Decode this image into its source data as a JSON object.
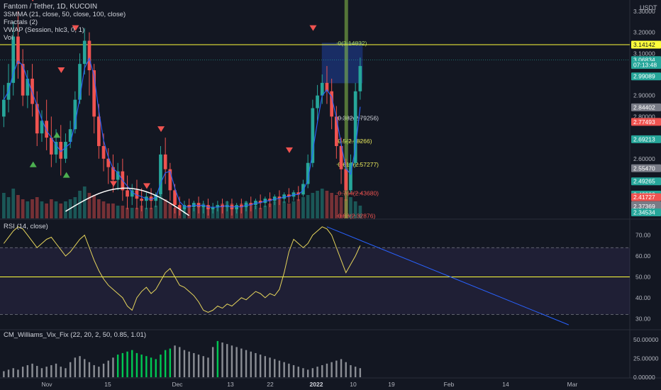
{
  "header": {
    "symbol_line": "Fantom / Tether, 1D, KUCOIN",
    "indicators": [
      "3SMMA (21, close, 50, close, 100, close)",
      "Fractals (2)",
      "VWAP (Session, hlc3, 0, 1)",
      "Vol"
    ],
    "currency": "USDT"
  },
  "rsi_legend": "RSI (14, close)",
  "vix_legend": "CM_Williams_Vix_Fix (22, 20, 2, 50, 0.85, 1.01)",
  "colors": {
    "background": "#131722",
    "up": "#26a69a",
    "down": "#ef5350",
    "fib_green": "#9ccc65",
    "fib_yellow": "#e6e65c",
    "fib_red": "#ef5350",
    "level_yellow": "#ffff3b",
    "rsi_band": "#7e57c2",
    "trendline": "#2962ff",
    "vix_green": "#00c853",
    "vix_gray": "#8a8d94"
  },
  "chart_data": [
    {
      "type": "candlestick",
      "title": "Fantom / Tether, 1D, KUCOIN",
      "ylim": [
        2.33,
        3.34
      ],
      "price_ticks": [
        "3.30000",
        "3.20000",
        "3.10000",
        "2.90000",
        "2.80000",
        "2.60000"
      ],
      "x_tick_labels": [
        "Nov",
        "15",
        "Dec",
        "13",
        "22",
        "2022",
        "10",
        "19",
        "Feb",
        "14",
        "Mar"
      ],
      "candles": [
        [
          2.8,
          2.95,
          2.88,
          2.75
        ],
        [
          2.88,
          3.05,
          2.96,
          2.82
        ],
        [
          2.96,
          3.25,
          3.18,
          2.9
        ],
        [
          3.18,
          3.3,
          3.05,
          2.98
        ],
        [
          3.05,
          3.12,
          2.9,
          2.85
        ],
        [
          2.9,
          3.02,
          2.98,
          2.84
        ],
        [
          2.98,
          3.05,
          2.86,
          2.8
        ],
        [
          2.86,
          2.92,
          2.72,
          2.66
        ],
        [
          2.72,
          2.83,
          2.78,
          2.68
        ],
        [
          2.78,
          2.88,
          2.7,
          2.64
        ],
        [
          2.7,
          2.8,
          2.62,
          2.56
        ],
        [
          2.62,
          2.74,
          2.68,
          2.58
        ],
        [
          2.68,
          2.76,
          2.6,
          2.52
        ],
        [
          2.6,
          2.72,
          2.68,
          2.58
        ],
        [
          2.68,
          2.78,
          2.74,
          2.65
        ],
        [
          2.74,
          2.92,
          2.88,
          2.72
        ],
        [
          2.88,
          3.1,
          3.05,
          2.86
        ],
        [
          3.05,
          3.22,
          3.16,
          3.0
        ],
        [
          3.16,
          3.2,
          3.02,
          2.9
        ],
        [
          3.02,
          3.05,
          2.8,
          2.72
        ],
        [
          2.8,
          2.86,
          2.66,
          2.6
        ],
        [
          2.66,
          2.72,
          2.6,
          2.54
        ],
        [
          2.6,
          2.65,
          2.56,
          2.48
        ],
        [
          2.56,
          2.62,
          2.5,
          2.44
        ],
        [
          2.5,
          2.58,
          2.54,
          2.45
        ],
        [
          2.54,
          2.6,
          2.45,
          2.4
        ],
        [
          2.45,
          2.52,
          2.42,
          2.36
        ],
        [
          2.42,
          2.48,
          2.45,
          2.38
        ],
        [
          2.45,
          2.5,
          2.41,
          2.36
        ],
        [
          2.41,
          2.46,
          2.4,
          2.35
        ],
        [
          2.4,
          2.44,
          2.42,
          2.36
        ],
        [
          2.42,
          2.46,
          2.4,
          2.36
        ],
        [
          2.4,
          2.44,
          2.43,
          2.37
        ],
        [
          2.43,
          2.66,
          2.62,
          2.42
        ],
        [
          2.62,
          2.7,
          2.55,
          2.48
        ],
        [
          2.55,
          2.58,
          2.45,
          2.4
        ],
        [
          2.45,
          2.48,
          2.38,
          2.34
        ],
        [
          2.38,
          2.42,
          2.36,
          2.33
        ],
        [
          2.36,
          2.4,
          2.38,
          2.34
        ],
        [
          2.38,
          2.41,
          2.37,
          2.34
        ],
        [
          2.37,
          2.4,
          2.39,
          2.35
        ],
        [
          2.39,
          2.42,
          2.37,
          2.34
        ],
        [
          2.37,
          2.4,
          2.38,
          2.34
        ],
        [
          2.38,
          2.41,
          2.36,
          2.33
        ],
        [
          2.36,
          2.39,
          2.37,
          2.34
        ],
        [
          2.37,
          2.4,
          2.38,
          2.35
        ],
        [
          2.38,
          2.41,
          2.37,
          2.34
        ],
        [
          2.37,
          2.4,
          2.38,
          2.35
        ],
        [
          2.38,
          2.41,
          2.36,
          2.33
        ],
        [
          2.36,
          2.39,
          2.38,
          2.34
        ],
        [
          2.38,
          2.41,
          2.37,
          2.34
        ],
        [
          2.37,
          2.4,
          2.39,
          2.35
        ],
        [
          2.39,
          2.42,
          2.38,
          2.35
        ],
        [
          2.38,
          2.41,
          2.4,
          2.36
        ],
        [
          2.4,
          2.43,
          2.39,
          2.36
        ],
        [
          2.39,
          2.42,
          2.41,
          2.37
        ],
        [
          2.41,
          2.44,
          2.4,
          2.37
        ],
        [
          2.4,
          2.43,
          2.42,
          2.38
        ],
        [
          2.42,
          2.45,
          2.41,
          2.38
        ],
        [
          2.41,
          2.44,
          2.43,
          2.39
        ],
        [
          2.43,
          2.46,
          2.42,
          2.39
        ],
        [
          2.42,
          2.45,
          2.44,
          2.4
        ],
        [
          2.44,
          2.47,
          2.43,
          2.4
        ],
        [
          2.43,
          2.5,
          2.48,
          2.42
        ],
        [
          2.48,
          2.62,
          2.58,
          2.46
        ],
        [
          2.58,
          2.88,
          2.84,
          2.56
        ],
        [
          2.84,
          2.95,
          2.9,
          2.78
        ],
        [
          2.9,
          3.0,
          2.96,
          2.86
        ],
        [
          2.96,
          3.04,
          2.92,
          2.86
        ],
        [
          2.92,
          2.98,
          2.8,
          2.74
        ],
        [
          2.8,
          2.85,
          2.66,
          2.6
        ],
        [
          2.66,
          2.7,
          2.55,
          2.48
        ],
        [
          2.55,
          2.6,
          2.45,
          2.4
        ],
        [
          2.45,
          2.62,
          2.58,
          2.44
        ],
        [
          2.58,
          2.96,
          2.92,
          2.56
        ],
        [
          2.92,
          3.08,
          3.04,
          2.88
        ]
      ],
      "volume": [
        1.2,
        1.0,
        1.4,
        1.1,
        0.9,
        0.8,
        0.9,
        1.0,
        0.8,
        0.7,
        0.9,
        0.8,
        0.7,
        0.8,
        0.9,
        1.0,
        1.3,
        1.5,
        1.2,
        1.1,
        0.9,
        0.8,
        0.7,
        0.7,
        0.6,
        0.6,
        0.5,
        0.5,
        0.5,
        0.6,
        0.5,
        0.5,
        0.6,
        1.1,
        0.9,
        0.7,
        0.5,
        0.4,
        0.5,
        0.6,
        0.5,
        0.6,
        0.7,
        0.6,
        0.5,
        0.6,
        0.7,
        0.8,
        0.7,
        0.6,
        0.7,
        0.8,
        0.7,
        0.6,
        0.5,
        0.6,
        0.7,
        0.8,
        0.9,
        0.8,
        0.7,
        0.8,
        0.9,
        1.0,
        1.1,
        1.2,
        1.3,
        1.4,
        1.3,
        1.2,
        1.1,
        1.0,
        0.9,
        1.0,
        0.8,
        0.6
      ],
      "fractals_up": [
        [
          7,
          2.74
        ],
        [
          2,
          2.6
        ],
        [
          9,
          2.55
        ]
      ],
      "fractals_down": [
        [
          4,
          3.34
        ],
        [
          13,
          3.2
        ],
        [
          10,
          3.0
        ],
        [
          31,
          2.72
        ],
        [
          21,
          2.46
        ],
        [
          28,
          2.45
        ],
        [
          58,
          2.62
        ],
        [
          63,
          3.2
        ]
      ],
      "fib_levels": [
        {
          "label": "0(3.14832)",
          "value": 3.14832,
          "color": "#9ccc65"
        },
        {
          "label": "0.382(2.79256)",
          "value": 2.79256,
          "color": "#d1d4dc"
        },
        {
          "label": "0.5(2.68266)",
          "value": 2.68266,
          "color": "#e6e65c"
        },
        {
          "label": "0.618(2.57277)",
          "value": 2.57277,
          "color": "#e6e65c"
        },
        {
          "label": "0.764(2.43680)",
          "value": 2.4368,
          "color": "#ef5350"
        },
        {
          "label": "0.88(2.32876)",
          "value": 2.32876,
          "color": "#ef5350"
        }
      ],
      "horizontal_level": 3.14142,
      "price_labels": [
        {
          "text": "3.14142",
          "value": 3.14142,
          "bg": "#ffff3b",
          "fg": "#131722"
        },
        {
          "text": "3.06834",
          "value": 3.06834,
          "bg": "#26a69a",
          "fg": "#ffffff"
        },
        {
          "text": "07:13:48",
          "value": 3.045,
          "bg": "#26a69a",
          "fg": "#ffffff"
        },
        {
          "text": "2.99089",
          "value": 2.99089,
          "bg": "#26a69a",
          "fg": "#ffffff"
        },
        {
          "text": "2.84402",
          "value": 2.84402,
          "bg": "#787b86",
          "fg": "#ffffff"
        },
        {
          "text": "2.77493",
          "value": 2.77493,
          "bg": "#ef5350",
          "fg": "#ffffff"
        },
        {
          "text": "2.69213",
          "value": 2.69213,
          "bg": "#26a69a",
          "fg": "#ffffff"
        },
        {
          "text": "2.55470",
          "value": 2.5547,
          "bg": "#787b86",
          "fg": "#ffffff"
        },
        {
          "text": "2.49265",
          "value": 2.49265,
          "bg": "#26a69a",
          "fg": "#ffffff"
        },
        {
          "text": "2.42932",
          "value": 2.42932,
          "bg": "#26a69a",
          "fg": "#ffffff"
        },
        {
          "text": "2.41727",
          "value": 2.41727,
          "bg": "#ef5350",
          "fg": "#ffffff"
        },
        {
          "text": "2.37968",
          "value": 2.37968,
          "bg": "#787b86",
          "fg": "#ffffff"
        },
        {
          "text": "2.37369",
          "value": 2.37369,
          "bg": "#787b86",
          "fg": "#ffffff"
        },
        {
          "text": "2.34534",
          "value": 2.34534,
          "bg": "#26a69a",
          "fg": "#ffffff"
        }
      ]
    },
    {
      "type": "line",
      "title": "RSI (14, close)",
      "ylim": [
        25,
        77
      ],
      "y_ticks": [
        "70.00",
        "60.00",
        "50.00",
        "40.00",
        "30.00"
      ],
      "band": [
        32,
        64
      ],
      "midline": 50,
      "values": [
        66,
        69,
        72,
        74,
        73,
        70,
        67,
        64,
        66,
        68,
        69,
        66,
        63,
        60,
        62,
        65,
        68,
        70,
        64,
        58,
        53,
        49,
        46,
        44,
        42,
        40,
        36,
        34,
        40,
        43,
        45,
        42,
        44,
        48,
        52,
        54,
        50,
        46,
        45,
        43,
        41,
        38,
        34,
        33,
        34,
        36,
        35,
        37,
        36,
        38,
        40,
        39,
        41,
        43,
        42,
        40,
        42,
        41,
        44,
        52,
        62,
        68,
        66,
        64,
        66,
        70,
        72,
        74,
        73,
        70,
        64,
        58,
        52,
        56,
        60,
        65
      ],
      "trendline": [
        [
          68,
          74
        ],
        [
          95,
          27
        ]
      ]
    },
    {
      "type": "bar",
      "title": "CM_Williams_Vix_Fix (22, 20, 2, 50, 0.85, 1.01)",
      "ylim": [
        0,
        62
      ],
      "y_ticks": [
        "50.00000",
        "25.00000",
        "0.00000"
      ],
      "values": [
        8,
        10,
        12,
        10,
        14,
        16,
        18,
        15,
        12,
        14,
        16,
        18,
        14,
        12,
        20,
        26,
        28,
        24,
        20,
        16,
        14,
        18,
        22,
        26,
        30,
        32,
        34,
        36,
        32,
        30,
        28,
        26,
        24,
        30,
        36,
        38,
        42,
        40,
        36,
        34,
        32,
        30,
        28,
        26,
        40,
        48,
        46,
        44,
        42,
        40,
        38,
        36,
        34,
        32,
        30,
        28,
        26,
        24,
        22,
        20,
        18,
        16,
        14,
        12,
        10,
        12,
        14,
        16,
        18,
        20,
        22,
        24,
        20,
        16,
        14,
        12
      ],
      "green_indices": [
        24,
        25,
        26,
        27,
        28,
        29,
        30,
        31,
        32,
        33,
        34,
        35,
        45
      ]
    }
  ]
}
